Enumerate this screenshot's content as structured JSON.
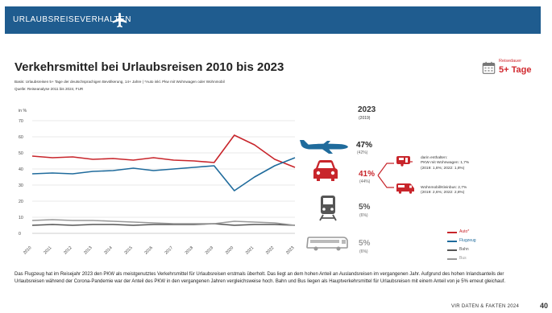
{
  "header": {
    "section": "URLAUBSREISEVERHALTEN"
  },
  "title": "Verkehrsmittel bei Urlaubsreisen 2010 bis 2023",
  "basis": "Basis: Urlaubsreisen 5+ Tage der deutschsprachigen Bevölkerung, 14+ Jahre | *Auto inkl. Pkw mit Wohnwagen oder Wohnmobil",
  "source": "Quelle: Reiseanalyse 2011 bis 2024, FUR",
  "badge": {
    "small": "Reisedauer",
    "big": "5+ Tage",
    "icon": "calendar-icon"
  },
  "year_head": {
    "year": "2023",
    "ref": "(2019)"
  },
  "modes": [
    {
      "id": "flug",
      "icon": "airplane-icon",
      "pct": "47%",
      "ref": "(42%)",
      "color": "#1f6b9c"
    },
    {
      "id": "auto",
      "icon": "car-icon",
      "pct": "41%",
      "ref": "(44%)",
      "color": "#c8252b"
    },
    {
      "id": "bahn",
      "icon": "train-icon",
      "pct": "5%",
      "ref": "(6%)",
      "color": "#555555"
    },
    {
      "id": "bus",
      "icon": "bus-icon",
      "pct": "5%",
      "ref": "(6%)",
      "color": "#999999"
    }
  ],
  "details": {
    "wohnwagen": {
      "line1": "darin enthalten:",
      "line2": "PKW mit Wohnwagen: 1,7%",
      "line3": "(2019: 1,8%; 2022: 1,8%)",
      "icon": "caravan-icon"
    },
    "wohnmobil": {
      "line1": "Wohnmobil/Kleinbus: 2,7%",
      "line2": "(2019: 2,6%; 2022: 2,8%)",
      "icon": "camper-van-icon"
    }
  },
  "legend": [
    {
      "label": "Auto*",
      "color": "#c8252b"
    },
    {
      "label": "Flugzeug",
      "color": "#1f6b9c"
    },
    {
      "label": "Bahn",
      "color": "#555555"
    },
    {
      "label": "Bus",
      "color": "#999999"
    }
  ],
  "chart_data": {
    "type": "line",
    "ylabel": "in %",
    "ylim": [
      0,
      70
    ],
    "yticks": [
      0,
      10,
      20,
      30,
      40,
      50,
      60,
      70
    ],
    "x": [
      "2010",
      "2011",
      "2012",
      "2013",
      "2014",
      "2015",
      "2016",
      "2017",
      "2018",
      "2019",
      "2020",
      "2021",
      "2022",
      "2023"
    ],
    "series": [
      {
        "name": "Auto*",
        "color": "#c8252b",
        "values": [
          48,
          47,
          47.5,
          46,
          46.5,
          45.5,
          47,
          45.5,
          45,
          44,
          61,
          55,
          46,
          41
        ]
      },
      {
        "name": "Flugzeug",
        "color": "#1f6b9c",
        "values": [
          37,
          37.5,
          37,
          38.5,
          39,
          40.5,
          39,
          40,
          41,
          42,
          26.5,
          35,
          42,
          47
        ]
      },
      {
        "name": "Bahn",
        "color": "#555555",
        "values": [
          5,
          5.5,
          5,
          5.5,
          5.5,
          5,
          5.5,
          5.5,
          5.5,
          6,
          5,
          5.5,
          5.5,
          5
        ]
      },
      {
        "name": "Bus",
        "color": "#999999",
        "values": [
          8,
          8.5,
          8,
          8,
          7.5,
          7,
          6.5,
          6,
          6,
          6,
          7.5,
          7,
          6.5,
          5
        ]
      }
    ],
    "grid": true,
    "legend_position": "right"
  },
  "footer": "Das Flugzeug hat im Reisejahr 2023 den PKW als meistgenutztes Verkehrsmittel für Urlaubsreisen erstmals überholt. Das liegt an dem hohen Anteil an Auslandsreisen im vergangenen Jahr. Aufgrund des hohen Inlandsanteils der Urlaubsreisen während der Corona-Pandemie war der Anteil des PKW in den vergangenen Jahren vergleichsweise hoch. Bahn und Bus liegen als Hauptverkehrsmittel für Urlaubsreisen mit einem Anteil von je 5% erneut gleichauf.",
  "page": {
    "label": "VIR DATEN & FAKTEN 2024",
    "number": "40"
  }
}
